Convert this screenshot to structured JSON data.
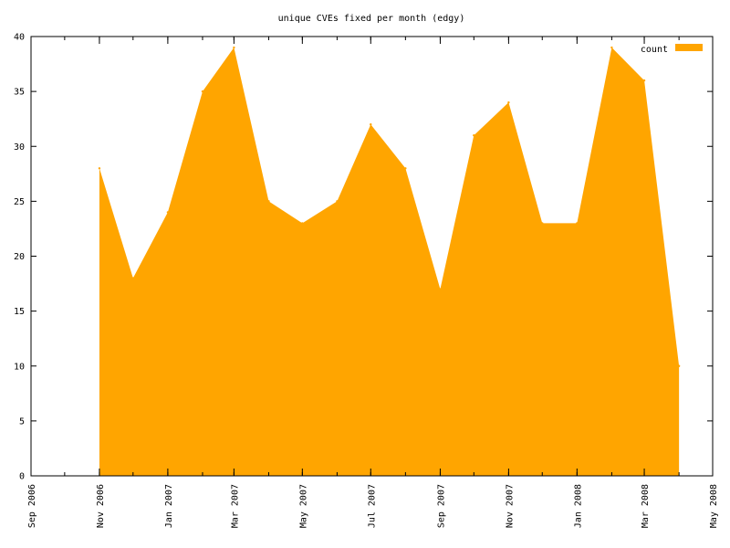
{
  "chart_data": {
    "type": "area",
    "title": "unique CVEs fixed per month (edgy)",
    "xlabel": "",
    "ylabel": "",
    "ylim": [
      0,
      40
    ],
    "xlim": [
      "2006-09",
      "2008-05"
    ],
    "y_ticks": [
      0,
      5,
      10,
      15,
      20,
      25,
      30,
      35,
      40
    ],
    "x_ticks": [
      "2006-09",
      "2006-11",
      "2007-01",
      "2007-03",
      "2007-05",
      "2007-07",
      "2007-09",
      "2007-11",
      "2008-01",
      "2008-03",
      "2008-05"
    ],
    "x_tick_labels": [
      "Sep 2006",
      "Nov 2006",
      "Jan 2007",
      "Mar 2007",
      "May 2007",
      "Jul 2007",
      "Sep 2007",
      "Nov 2007",
      "Jan 2008",
      "Mar 2008",
      "May 2008"
    ],
    "x": [
      "2006-11",
      "2006-12",
      "2007-01",
      "2007-02",
      "2007-03",
      "2007-04",
      "2007-05",
      "2007-06",
      "2007-07",
      "2007-08",
      "2007-09",
      "2007-10",
      "2007-11",
      "2007-12",
      "2008-01",
      "2008-02",
      "2008-03",
      "2008-04"
    ],
    "series": [
      {
        "name": "count",
        "color": "#ffa500",
        "values": [
          28,
          18,
          24,
          35,
          39,
          25,
          23,
          25,
          32,
          28,
          17,
          31,
          34,
          23,
          23,
          39,
          36,
          10
        ]
      }
    ],
    "legend_position": "top-right",
    "grid": false
  }
}
